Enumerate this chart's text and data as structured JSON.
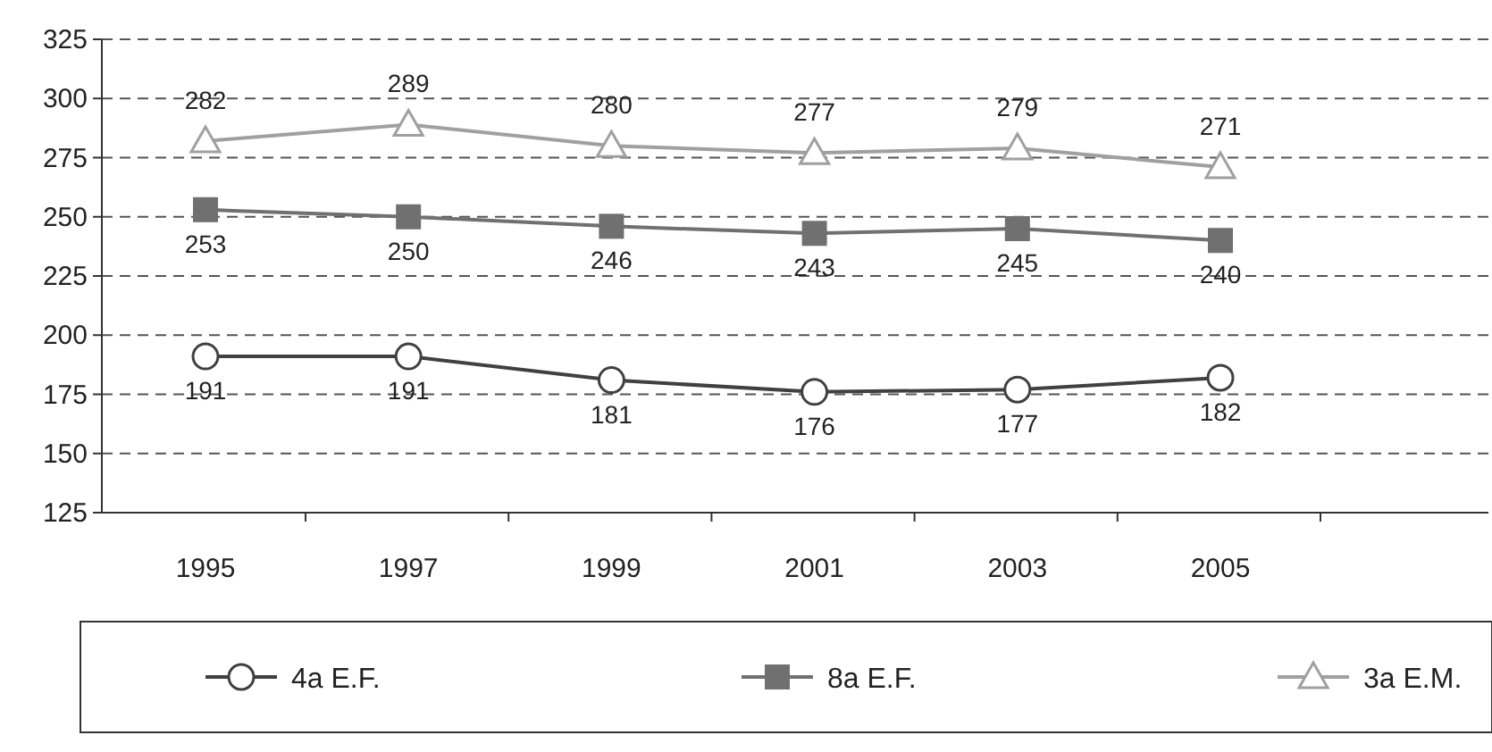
{
  "chart_data": {
    "type": "line",
    "categories": [
      "1995",
      "1997",
      "1999",
      "2001",
      "2003",
      "2005"
    ],
    "series": [
      {
        "name": "4a E.F.",
        "color": "#404040",
        "marker": "circle",
        "values": [
          191,
          191,
          181,
          176,
          177,
          182
        ]
      },
      {
        "name": "8a E.F.",
        "color": "#707070",
        "marker": "square",
        "values": [
          253,
          250,
          246,
          243,
          245,
          240
        ]
      },
      {
        "name": "3a E.M.",
        "color": "#a0a0a0",
        "marker": "triangle",
        "values": [
          282,
          289,
          280,
          277,
          279,
          271
        ]
      }
    ],
    "ylim": [
      125,
      325
    ],
    "yticks": [
      125,
      150,
      175,
      200,
      225,
      250,
      275,
      300,
      325
    ],
    "grid": "y",
    "data_labels": true,
    "legend": "bottom",
    "line_style": "solid"
  }
}
